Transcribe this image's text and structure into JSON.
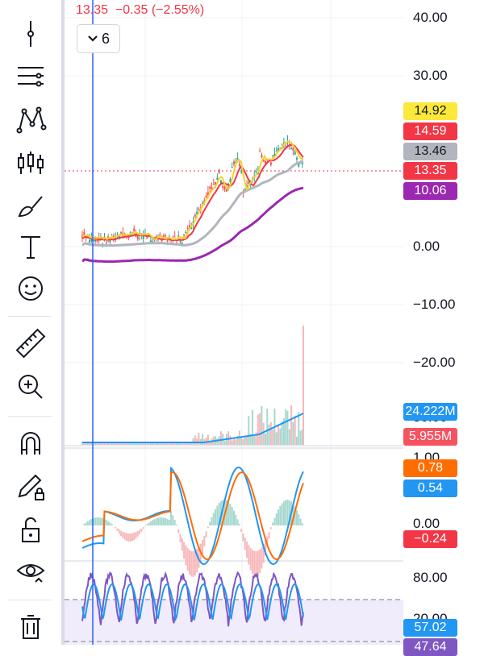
{
  "header": {
    "last_price": "13.35",
    "change": "−0.35 (−2.55%)",
    "interval_label": "6",
    "interval_icon": "chevron-down-icon"
  },
  "toolbar": {
    "tools": [
      "crosshair-icon",
      "trend-line-icon",
      "pattern-icon",
      "forecast-icon",
      "brush-icon",
      "text-icon",
      "emoji-icon",
      "ruler-icon",
      "zoom-in-icon",
      "magnet-icon",
      "lock-drawing-icon",
      "unlock-icon",
      "eye-icon",
      "trash-icon"
    ]
  },
  "price_scale": {
    "ticks": [
      "40.00",
      "30.00",
      "0.00",
      "−10.00",
      "−20.00"
    ],
    "badges": [
      {
        "value": "14.92",
        "bg": "#fbe83a",
        "fg": "#131722"
      },
      {
        "value": "14.59",
        "bg": "#f23645",
        "fg": "#ffffff"
      },
      {
        "value": "13.46",
        "bg": "#b2b5be",
        "fg": "#131722"
      },
      {
        "value": "13.35",
        "bg": "#f23645",
        "fg": "#ffffff"
      },
      {
        "value": "10.06",
        "bg": "#9c27b0",
        "fg": "#ffffff"
      }
    ]
  },
  "volume_scale": {
    "ticks": [
      "30.00"
    ],
    "badges": [
      {
        "value": "24.222M",
        "bg": "#2196f3",
        "fg": "#ffffff"
      },
      {
        "value": "5.955M",
        "bg": "#f7525f",
        "fg": "#ffffff"
      }
    ]
  },
  "macd_scale": {
    "ticks": [
      "1.00",
      "0.00"
    ],
    "badges": [
      {
        "value": "0.78",
        "bg": "#ff6d00",
        "fg": "#ffffff"
      },
      {
        "value": "0.54",
        "bg": "#2196f3",
        "fg": "#ffffff"
      },
      {
        "value": "−0.24",
        "bg": "#f23645",
        "fg": "#ffffff"
      }
    ]
  },
  "stoch_scale": {
    "ticks": [
      "80.00",
      "20.00"
    ],
    "badges": [
      {
        "value": "57.02",
        "bg": "#2196f3",
        "fg": "#ffffff"
      },
      {
        "value": "47.64",
        "bg": "#7e57c2",
        "fg": "#ffffff"
      }
    ]
  },
  "colors": {
    "up": "#26a69a",
    "down": "#ef5350",
    "ma_yellow": "#f5d32b",
    "ma_red": "#f23645",
    "ma_gray": "#b2b5be",
    "ma_purple": "#9c27b0",
    "macd": "#2196f3",
    "signal": "#ff6d00",
    "stoch_k": "#2196f3",
    "stoch_d": "#7e57c2"
  }
}
